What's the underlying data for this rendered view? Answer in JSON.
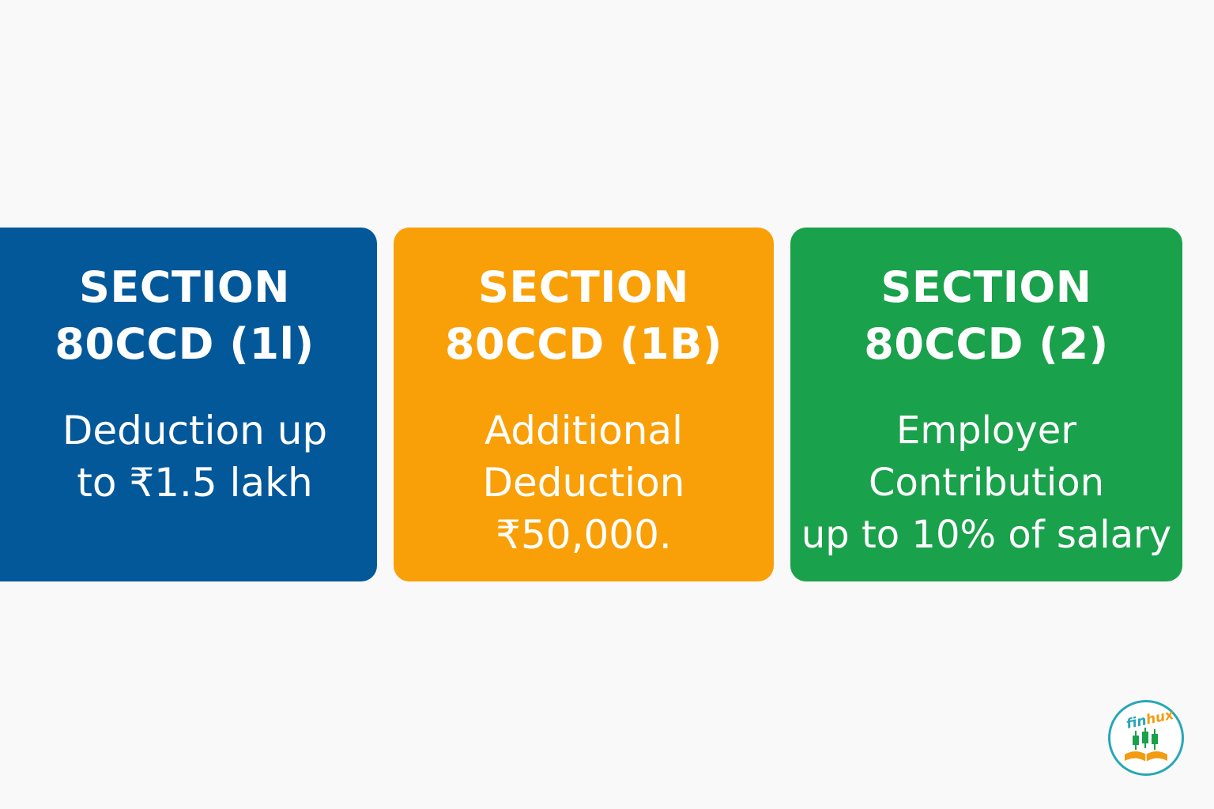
{
  "cards": [
    {
      "color": "#03589a",
      "heading": [
        "SECTION",
        "80CCD (1l)"
      ],
      "description": [
        "Deduction up",
        "to ₹1.5 lakh"
      ]
    },
    {
      "color": "#f9a008",
      "heading": [
        "SECTION",
        "80CCD (1B)"
      ],
      "description": [
        "Additional",
        "Deduction",
        "₹50,000."
      ]
    },
    {
      "color": "#1aa14b",
      "heading": [
        "SECTION",
        "80CCD (2)"
      ],
      "description": [
        "Employer",
        "Contribution",
        "up to 10% of salary"
      ]
    }
  ],
  "logo": {
    "text_fin": "fin",
    "text_hux": "hux",
    "ring_color": "#26a7b8",
    "candle_color": "#1aa14b",
    "book_color": "#f39c12",
    "icon": "candlestick-book-icon"
  }
}
